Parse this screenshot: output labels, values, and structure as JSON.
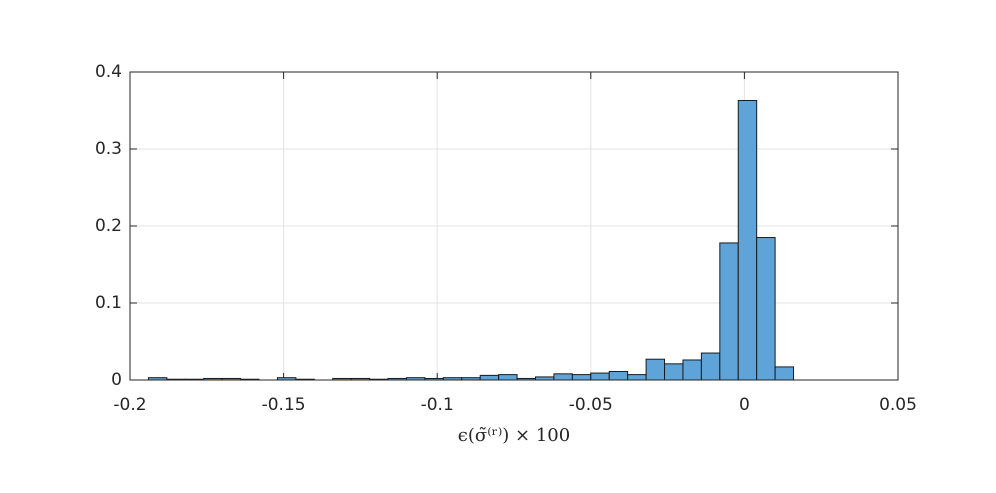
{
  "chart_data": {
    "type": "histogram",
    "xlabel": "ϵ(σ̃⁽ʳ⁾) × 100",
    "bins": [
      -0.194,
      -0.188,
      -0.182,
      -0.176,
      -0.17,
      -0.164,
      -0.158,
      -0.152,
      -0.146,
      -0.14,
      -0.134,
      -0.128,
      -0.122,
      -0.116,
      -0.11,
      -0.104,
      -0.098,
      -0.092,
      -0.086,
      -0.08,
      -0.074,
      -0.068,
      -0.062,
      -0.056,
      -0.05,
      -0.044,
      -0.038,
      -0.032,
      -0.026,
      -0.02,
      -0.014,
      -0.008,
      -0.002,
      0.004,
      0.01,
      0.016
    ],
    "values": [
      0.003,
      0.001,
      0.001,
      0.002,
      0.002,
      0.001,
      0.0,
      0.003,
      0.001,
      0.0,
      0.002,
      0.002,
      0.001,
      0.002,
      0.003,
      0.002,
      0.003,
      0.003,
      0.006,
      0.007,
      0.002,
      0.004,
      0.008,
      0.007,
      0.009,
      0.011,
      0.007,
      0.027,
      0.021,
      0.026,
      0.035,
      0.178,
      0.363,
      0.185,
      0.017
    ],
    "color": "#5fa4d8",
    "xlim": [
      -0.2,
      0.05
    ],
    "xticks": [
      -0.2,
      -0.15,
      -0.1,
      -0.05,
      0,
      0.05
    ],
    "ylim": [
      0,
      0.4
    ],
    "yticks": [
      0,
      0.1,
      0.2,
      0.3,
      0.4
    ],
    "grid": true
  }
}
